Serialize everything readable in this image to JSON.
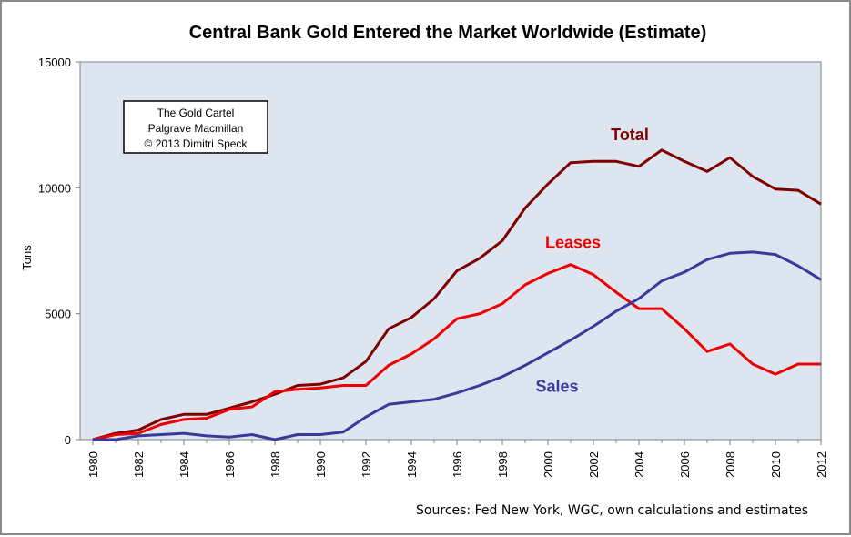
{
  "chart_data": {
    "type": "line",
    "title": "Central Bank Gold Entered the Market Worldwide (Estimate)",
    "ylabel": "Tons",
    "xlabel": "",
    "ylim": [
      0,
      15000
    ],
    "xlim": [
      1980,
      2012
    ],
    "y_ticks": [
      "0",
      "5000",
      "10000",
      "15000"
    ],
    "x_tick_labels": [
      "1980",
      "1982",
      "1984",
      "1986",
      "1988",
      "1990",
      "1992",
      "1994",
      "1996",
      "1998",
      "2000",
      "2002",
      "2004",
      "2006",
      "2008",
      "2010",
      "2012"
    ],
    "x": [
      1980,
      1981,
      1982,
      1983,
      1984,
      1985,
      1986,
      1987,
      1988,
      1989,
      1990,
      1991,
      1992,
      1993,
      1994,
      1995,
      1996,
      1997,
      1998,
      1999,
      2000,
      2001,
      2002,
      2003,
      2004,
      2005,
      2006,
      2007,
      2008,
      2009,
      2010,
      2011,
      2012
    ],
    "series": [
      {
        "name": "Total",
        "color": "#800000",
        "values": [
          0,
          250,
          380,
          800,
          1000,
          1000,
          1250,
          1500,
          1800,
          2150,
          2200,
          2450,
          3100,
          4400,
          4850,
          5600,
          6700,
          7200,
          7900,
          9200,
          10150,
          11000,
          11050,
          11050,
          10850,
          11500,
          11050,
          10650,
          11200,
          10450,
          9950,
          9900,
          9350
        ]
      },
      {
        "name": "Leases",
        "color": "#ee0000",
        "values": [
          0,
          200,
          250,
          600,
          800,
          850,
          1200,
          1300,
          1900,
          2000,
          2050,
          2150,
          2150,
          2950,
          3400,
          4000,
          4800,
          5000,
          5400,
          6150,
          6600,
          6950,
          6550,
          5850,
          5200,
          5200,
          4400,
          3500,
          3800,
          3000,
          2600,
          3000,
          3000
        ]
      },
      {
        "name": "Sales",
        "color": "#3a3a9a",
        "values": [
          0,
          0,
          150,
          200,
          250,
          150,
          100,
          200,
          0,
          200,
          200,
          300,
          900,
          1400,
          1500,
          1600,
          1850,
          2150,
          2500,
          2950,
          3450,
          3950,
          4500,
          5100,
          5600,
          6300,
          6650,
          7150,
          7400,
          7450,
          7350,
          6900,
          6350
        ]
      }
    ],
    "grid": false,
    "plot_background": "#dde6f0",
    "legend": "inline series labels",
    "annotations": {
      "credit_lines": [
        "The Gold Cartel",
        "Palgrave Macmillan",
        "© 2013 Dimitri Speck"
      ],
      "source": "Sources: Fed New York, WGC, own calculations and estimates"
    }
  }
}
